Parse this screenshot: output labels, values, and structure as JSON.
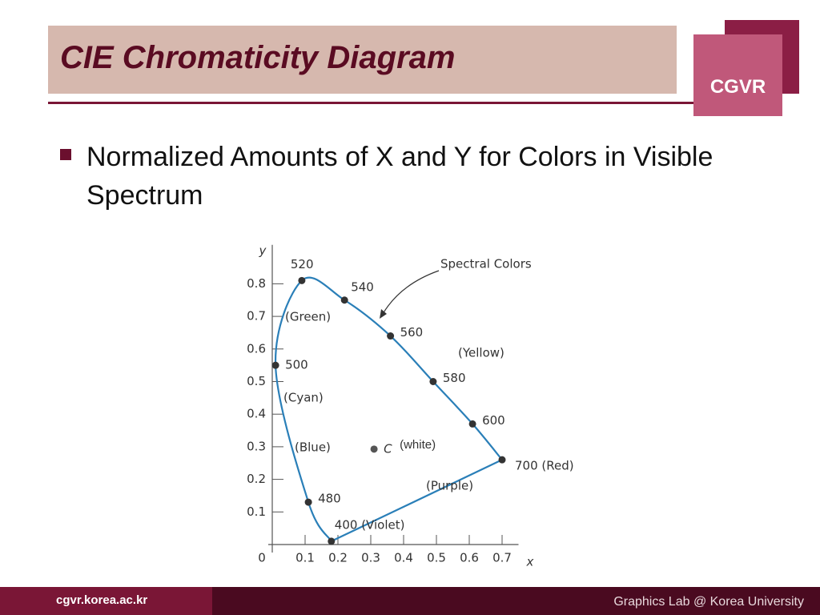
{
  "header": {
    "title": "CIE Chromaticity Diagram",
    "logo": "CGVR"
  },
  "bullet": "Normalized Amounts of X and Y for Colors in Visible Spectrum",
  "footer": {
    "left": "cgvr.korea.ac.kr",
    "right": "Graphics Lab @ Korea University"
  },
  "chart_data": {
    "type": "line",
    "x_label": "x",
    "y_label": "y",
    "xlim": [
      0,
      0.75
    ],
    "ylim": [
      0,
      0.9
    ],
    "xticks": [
      0,
      0.1,
      0.2,
      0.3,
      0.4,
      0.5,
      0.6,
      0.7
    ],
    "yticks": [
      0.1,
      0.2,
      0.3,
      0.4,
      0.5,
      0.6,
      0.7,
      0.8
    ],
    "color": "#2a7fb8",
    "series": [
      {
        "name": "Spectral Colors",
        "x": [
          0.18,
          0.11,
          0.01,
          0.09,
          0.22,
          0.36,
          0.49,
          0.61,
          0.7
        ],
        "values": [
          0.01,
          0.13,
          0.55,
          0.81,
          0.75,
          0.64,
          0.5,
          0.37,
          0.26
        ],
        "point_labels": [
          "400 (Violet)",
          "480",
          "500",
          "520",
          "540",
          "560",
          "580",
          "600",
          "700 (Red)"
        ]
      }
    ],
    "white_point": {
      "x": 0.31,
      "y": 0.31,
      "label": "C",
      "name": "(white)"
    },
    "annotations": [
      "(Green)",
      "(Cyan)",
      "(Blue)",
      "(Yellow)",
      "(Purple)"
    ]
  }
}
